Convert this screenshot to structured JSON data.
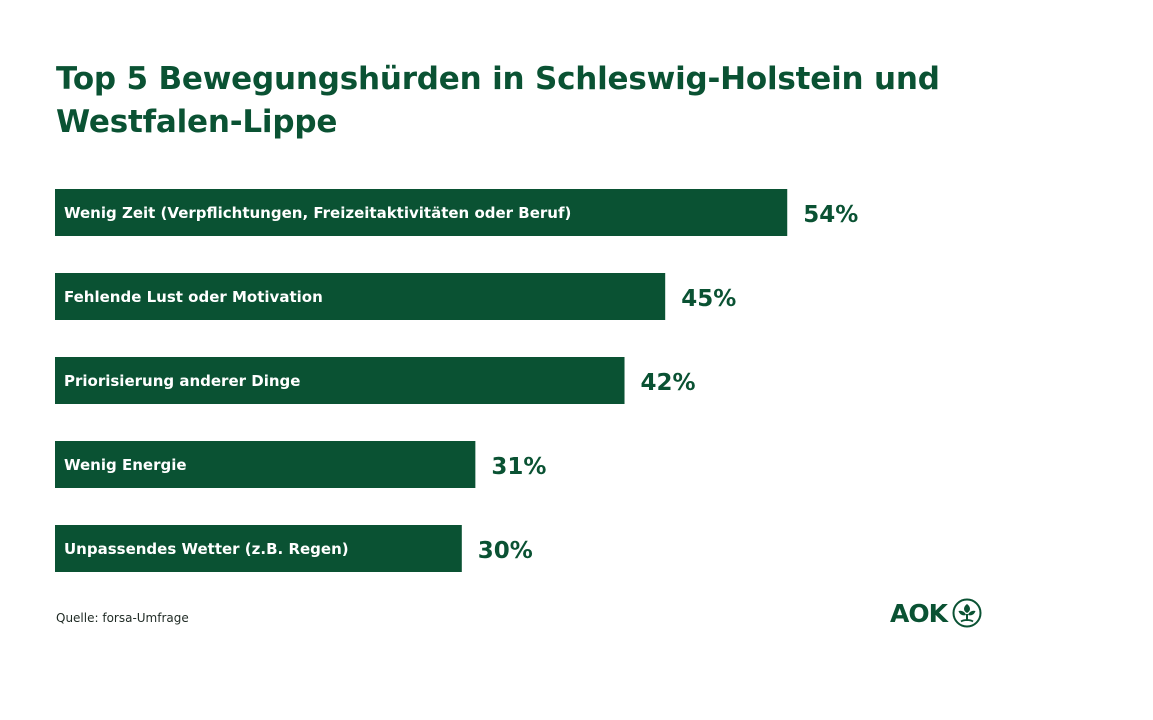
{
  "chart_data": {
    "type": "bar",
    "orientation": "horizontal",
    "title": "Top 5 Bewegungshürden in Schleswig-Holstein und Westfalen-Lippe",
    "categories": [
      "Wenig Zeit (Verpflichtungen, Freizeitaktivitäten oder Beruf)",
      "Fehlende Lust oder Motivation",
      "Priorisierung anderer Dinge",
      "Wenig Energie",
      "Unpassendes Wetter (z.B. Regen)"
    ],
    "values": [
      54,
      45,
      42,
      31,
      30
    ],
    "value_labels": [
      "54%",
      "45%",
      "42%",
      "31%",
      "30%"
    ],
    "unit": "%",
    "grid": false,
    "legend": "none"
  },
  "source": "Quelle: forsa-Umfrage",
  "logo": {
    "text": "AOK",
    "icon": "aok-tree-icon"
  },
  "colors": {
    "bar": "#0a5233",
    "text": "#0a5233",
    "background": "#ffffff"
  }
}
